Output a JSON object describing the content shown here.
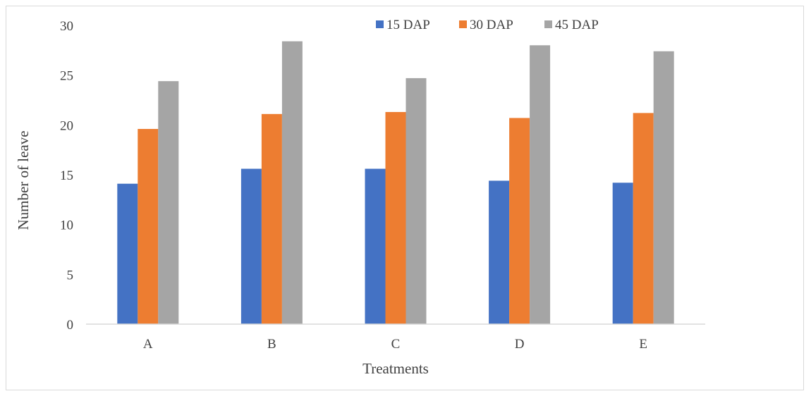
{
  "chart_data": {
    "type": "bar",
    "title": "",
    "xlabel": "Treatments",
    "ylabel": "Number of leave",
    "ylim": [
      0,
      30
    ],
    "yticks": [
      0,
      5,
      10,
      15,
      20,
      25,
      30
    ],
    "categories": [
      "A",
      "B",
      "C",
      "D",
      "E"
    ],
    "series": [
      {
        "name": "15 DAP",
        "color": "#4472C4",
        "values": [
          14.1,
          15.6,
          15.6,
          14.4,
          14.2
        ]
      },
      {
        "name": "30 DAP",
        "color": "#ED7D31",
        "values": [
          19.6,
          21.1,
          21.3,
          20.7,
          21.2
        ]
      },
      {
        "name": "45 DAP",
        "color": "#A5A5A5",
        "values": [
          24.4,
          28.4,
          24.7,
          28.0,
          27.4
        ]
      }
    ],
    "legend_position": "top",
    "grid": false
  }
}
